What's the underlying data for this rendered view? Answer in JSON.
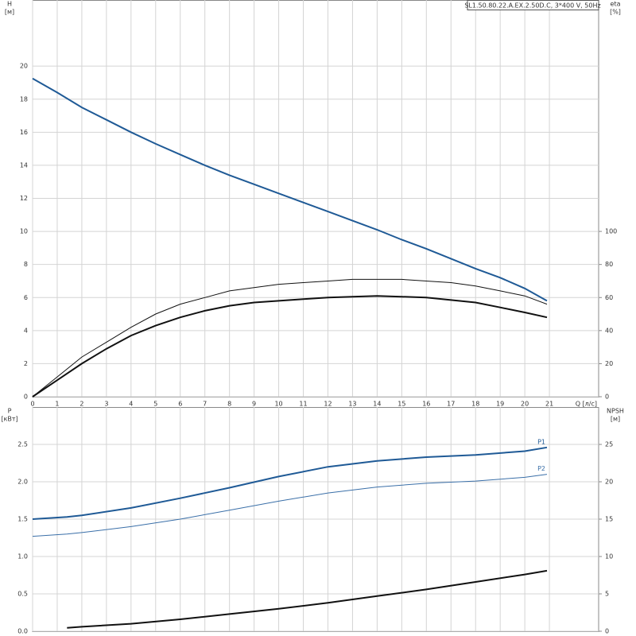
{
  "chart_data": [
    {
      "type": "line",
      "title": "SL1.50.80.22.A.EX.2.50D.C, 3*400 V, 50Hz",
      "y_label": "H",
      "y_unit": "[м]",
      "y2_label": "eta",
      "y2_unit": "[%]",
      "x_label": "Q [л/с]",
      "x": [
        0,
        1,
        2,
        3,
        4,
        5,
        6,
        7,
        8,
        9,
        10,
        11,
        12,
        13,
        14,
        15,
        16,
        17,
        18,
        19,
        20,
        20.9
      ],
      "xlim": [
        0,
        23
      ],
      "xticks": [
        0,
        1,
        2,
        3,
        4,
        5,
        6,
        7,
        8,
        9,
        10,
        11,
        12,
        13,
        14,
        15,
        16,
        17,
        18,
        19,
        20,
        21
      ],
      "ylim": [
        0,
        24
      ],
      "yticks": [
        0,
        2,
        4,
        6,
        8,
        10,
        12,
        14,
        16,
        18,
        20
      ],
      "y2lim": [
        0,
        240
      ],
      "y2ticks": [
        0,
        20,
        40,
        60,
        80,
        100
      ],
      "grid": true,
      "series": [
        {
          "color": "#1f5a96",
          "width": 2,
          "values": [
            19.25,
            18.4,
            17.5,
            16.75,
            16.0,
            15.3,
            14.65,
            14.0,
            13.4,
            12.85,
            12.3,
            11.75,
            11.2,
            10.65,
            10.1,
            9.5,
            8.95,
            8.35,
            7.75,
            7.2,
            6.55,
            5.8
          ]
        },
        {
          "color": "#111111",
          "width": 1,
          "axis": "y2",
          "values": [
            0,
            12,
            24,
            33,
            42,
            50,
            56,
            60,
            64,
            66,
            68,
            69,
            70,
            71,
            71,
            71,
            70,
            69,
            67,
            64,
            61,
            56
          ]
        },
        {
          "color": "#111111",
          "width": 2,
          "axis": "y2",
          "values": [
            0,
            10,
            20,
            29,
            37,
            43,
            48,
            52,
            55,
            57,
            58,
            59,
            60,
            60.5,
            61,
            60.5,
            60,
            58.5,
            57,
            54,
            51,
            48
          ]
        }
      ]
    },
    {
      "type": "line",
      "y_label": "P",
      "y_unit": "[кВт]",
      "y2_label": "NPSH",
      "y2_unit": "[м]",
      "x": [
        0,
        1.4,
        2,
        4,
        6,
        8,
        10,
        12,
        14,
        16,
        18,
        20,
        20.9
      ],
      "xlim": [
        0,
        23
      ],
      "ylim": [
        0,
        3
      ],
      "yticks": [
        {
          "value": 0,
          "label": "0.0"
        },
        0.5,
        {
          "value": 1,
          "label": "1.0"
        },
        1.5,
        {
          "value": 2,
          "label": "2.0"
        },
        2.5
      ],
      "y2lim": [
        0,
        30
      ],
      "y2ticks": [
        0,
        5,
        10,
        15,
        20,
        25
      ],
      "grid": true,
      "series": [
        {
          "name": "P1",
          "color": "#1f5a96",
          "width": 2,
          "values": [
            1.5,
            1.53,
            1.55,
            1.65,
            1.78,
            1.92,
            2.07,
            2.2,
            2.28,
            2.33,
            2.36,
            2.41,
            2.46
          ]
        },
        {
          "name": "P2",
          "color": "#3a6fa8",
          "width": 1,
          "values": [
            1.27,
            1.3,
            1.32,
            1.4,
            1.5,
            1.62,
            1.74,
            1.85,
            1.93,
            1.98,
            2.01,
            2.06,
            2.1
          ]
        },
        {
          "color": "#111111",
          "width": 2,
          "axis": "y2",
          "values": [
            null,
            0.45,
            0.6,
            1.0,
            1.6,
            2.3,
            3.0,
            3.8,
            4.7,
            5.6,
            6.6,
            7.6,
            8.1
          ]
        }
      ]
    }
  ]
}
